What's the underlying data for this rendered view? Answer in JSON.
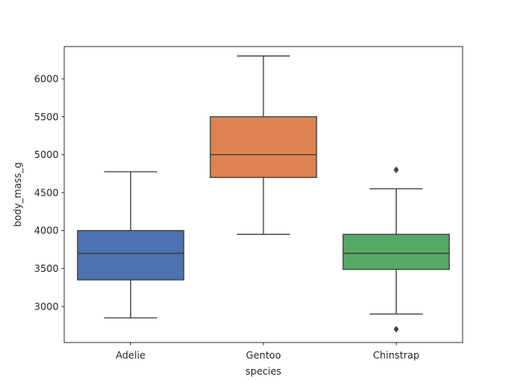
{
  "chart_data": {
    "type": "box",
    "xlabel": "species",
    "ylabel": "body_mass_g",
    "ylim": [
      2525,
      6425
    ],
    "yticks": [
      3000,
      3500,
      4000,
      4500,
      5000,
      5500,
      6000
    ],
    "grid": false,
    "categories": [
      "Adelie",
      "Gentoo",
      "Chinstrap"
    ],
    "boxes": [
      {
        "category": "Adelie",
        "color": "#4c72b0",
        "whisker_low": 2850,
        "q1": 3350,
        "median": 3700,
        "q3": 4000,
        "whisker_high": 4775,
        "outliers": []
      },
      {
        "category": "Gentoo",
        "color": "#dd8452",
        "whisker_low": 3950,
        "q1": 4700,
        "median": 5000,
        "q3": 5500,
        "whisker_high": 6300,
        "outliers": []
      },
      {
        "category": "Chinstrap",
        "color": "#55a868",
        "whisker_low": 2900,
        "q1": 3488,
        "median": 3700,
        "q3": 3950,
        "whisker_high": 4550,
        "outliers": [
          2700,
          4800
        ]
      }
    ]
  }
}
